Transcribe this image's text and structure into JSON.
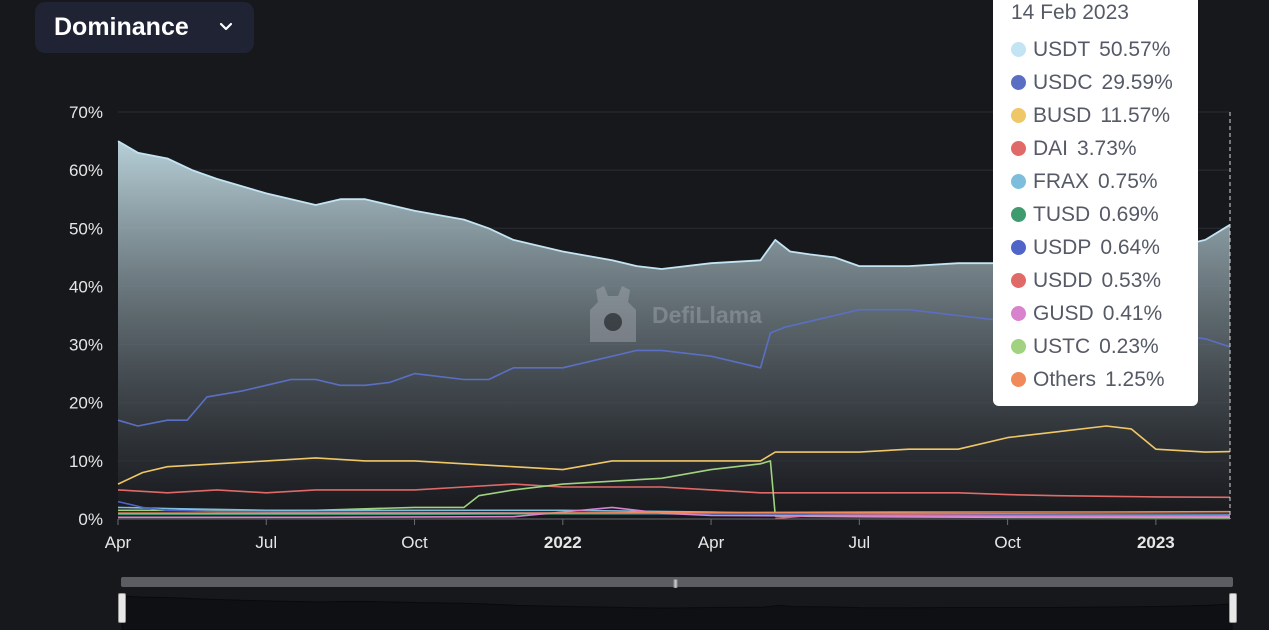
{
  "dropdown": {
    "label": "Dominance"
  },
  "watermark": {
    "text": "DefiLlama"
  },
  "tooltip": {
    "date": "14 Feb 2023",
    "items": [
      {
        "name": "USDT",
        "value": "50.57%",
        "color": "#c3e4f2"
      },
      {
        "name": "USDC",
        "value": "29.59%",
        "color": "#5a6fc4"
      },
      {
        "name": "BUSD",
        "value": "11.57%",
        "color": "#f0c766"
      },
      {
        "name": "DAI",
        "value": "3.73%",
        "color": "#e06a68"
      },
      {
        "name": "FRAX",
        "value": "0.75%",
        "color": "#7cbedb"
      },
      {
        "name": "TUSD",
        "value": "0.69%",
        "color": "#3f9a6e"
      },
      {
        "name": "USDP",
        "value": "0.64%",
        "color": "#4f66c8"
      },
      {
        "name": "USDD",
        "value": "0.53%",
        "color": "#e06a68"
      },
      {
        "name": "GUSD",
        "value": "0.41%",
        "color": "#d982cd"
      },
      {
        "name": "USTC",
        "value": "0.23%",
        "color": "#a0d27f"
      },
      {
        "name": "Others",
        "value": "1.25%",
        "color": "#f08a5a"
      }
    ]
  },
  "chart_data": {
    "type": "line",
    "title": "",
    "ylabel": "",
    "xlabel": "",
    "ylim": [
      0,
      70
    ],
    "y_ticks": [
      "0%",
      "10%",
      "20%",
      "30%",
      "40%",
      "50%",
      "60%",
      "70%"
    ],
    "x_ticks": [
      {
        "label": "Apr",
        "t": 0,
        "bold": false
      },
      {
        "label": "Jul",
        "t": 3,
        "bold": false
      },
      {
        "label": "Oct",
        "t": 6,
        "bold": false
      },
      {
        "label": "2022",
        "t": 9,
        "bold": true
      },
      {
        "label": "Apr",
        "t": 12,
        "bold": false
      },
      {
        "label": "Jul",
        "t": 15,
        "bold": false
      },
      {
        "label": "Oct",
        "t": 18,
        "bold": false
      },
      {
        "label": "2023",
        "t": 21,
        "bold": true
      }
    ],
    "x_end": 22.5,
    "series": [
      {
        "name": "USDT",
        "color": "#c3e4f2",
        "area": true,
        "points": [
          [
            0,
            65
          ],
          [
            0.4,
            63
          ],
          [
            1,
            62
          ],
          [
            1.5,
            60
          ],
          [
            2,
            58.5
          ],
          [
            3,
            56
          ],
          [
            4,
            54
          ],
          [
            4.5,
            55
          ],
          [
            5,
            55
          ],
          [
            6,
            53
          ],
          [
            7,
            51.5
          ],
          [
            7.5,
            50
          ],
          [
            8,
            48
          ],
          [
            9,
            46
          ],
          [
            10,
            44.5
          ],
          [
            10.5,
            43.5
          ],
          [
            11,
            43
          ],
          [
            12,
            44
          ],
          [
            13,
            44.5
          ],
          [
            13.3,
            48
          ],
          [
            13.6,
            46
          ],
          [
            14,
            45.5
          ],
          [
            14.5,
            45
          ],
          [
            15,
            43.5
          ],
          [
            16,
            43.5
          ],
          [
            17,
            44
          ],
          [
            18,
            44
          ],
          [
            19,
            44
          ],
          [
            20,
            45
          ],
          [
            21,
            46
          ],
          [
            22,
            48
          ],
          [
            22.5,
            50.6
          ]
        ]
      },
      {
        "name": "USDC",
        "color": "#5a6fc4",
        "points": [
          [
            0,
            17
          ],
          [
            0.4,
            16
          ],
          [
            1,
            17
          ],
          [
            1.4,
            17
          ],
          [
            1.8,
            21
          ],
          [
            2.5,
            22
          ],
          [
            3,
            23
          ],
          [
            3.5,
            24
          ],
          [
            4,
            24
          ],
          [
            4.5,
            23
          ],
          [
            5,
            23
          ],
          [
            5.5,
            23.5
          ],
          [
            6,
            25
          ],
          [
            7,
            24
          ],
          [
            7.5,
            24
          ],
          [
            8,
            26
          ],
          [
            9,
            26
          ],
          [
            10,
            28
          ],
          [
            10.5,
            29
          ],
          [
            11,
            29
          ],
          [
            12,
            28
          ],
          [
            13,
            26
          ],
          [
            13.2,
            32
          ],
          [
            13.5,
            33
          ],
          [
            14,
            34
          ],
          [
            14.5,
            35
          ],
          [
            15,
            36
          ],
          [
            16,
            36
          ],
          [
            17,
            35
          ],
          [
            18,
            34
          ],
          [
            19,
            34
          ],
          [
            20,
            33
          ],
          [
            21,
            32
          ],
          [
            22,
            31
          ],
          [
            22.5,
            29.6
          ]
        ]
      },
      {
        "name": "BUSD",
        "color": "#f0c766",
        "points": [
          [
            0,
            6
          ],
          [
            0.5,
            8
          ],
          [
            1,
            9
          ],
          [
            2,
            9.5
          ],
          [
            3,
            10
          ],
          [
            4,
            10.5
          ],
          [
            5,
            10
          ],
          [
            6,
            10
          ],
          [
            7,
            9.5
          ],
          [
            8,
            9
          ],
          [
            9,
            8.5
          ],
          [
            10,
            10
          ],
          [
            11,
            10
          ],
          [
            12,
            10
          ],
          [
            13,
            10
          ],
          [
            13.3,
            11.5
          ],
          [
            14,
            11.5
          ],
          [
            15,
            11.5
          ],
          [
            16,
            12
          ],
          [
            17,
            12
          ],
          [
            18,
            14
          ],
          [
            19,
            15
          ],
          [
            20,
            16
          ],
          [
            20.5,
            15.5
          ],
          [
            21,
            12
          ],
          [
            22,
            11.5
          ],
          [
            22.5,
            11.6
          ]
        ]
      },
      {
        "name": "DAI",
        "color": "#e06a68",
        "points": [
          [
            0,
            5
          ],
          [
            1,
            4.5
          ],
          [
            2,
            5
          ],
          [
            3,
            4.5
          ],
          [
            4,
            5
          ],
          [
            5,
            5
          ],
          [
            6,
            5
          ],
          [
            7,
            5.5
          ],
          [
            8,
            6
          ],
          [
            9,
            5.5
          ],
          [
            10,
            5.5
          ],
          [
            11,
            5.5
          ],
          [
            12,
            5
          ],
          [
            13,
            4.5
          ],
          [
            14,
            4.5
          ],
          [
            15,
            4.5
          ],
          [
            16,
            4.5
          ],
          [
            17,
            4.5
          ],
          [
            18,
            4.2
          ],
          [
            19,
            4
          ],
          [
            20,
            3.9
          ],
          [
            21,
            3.8
          ],
          [
            22,
            3.75
          ],
          [
            22.5,
            3.73
          ]
        ]
      },
      {
        "name": "USTC",
        "color": "#a0d27f",
        "points": [
          [
            0,
            1.5
          ],
          [
            2,
            1.5
          ],
          [
            4,
            1.5
          ],
          [
            6,
            2
          ],
          [
            7,
            2
          ],
          [
            7.3,
            4
          ],
          [
            8,
            5
          ],
          [
            9,
            6
          ],
          [
            10,
            6.5
          ],
          [
            11,
            7
          ],
          [
            12,
            8.5
          ],
          [
            13,
            9.5
          ],
          [
            13.2,
            10
          ],
          [
            13.3,
            0.5
          ],
          [
            15,
            0.4
          ],
          [
            18,
            0.3
          ],
          [
            20,
            0.25
          ],
          [
            22.5,
            0.23
          ]
        ]
      },
      {
        "name": "FRAX",
        "color": "#7cbedb",
        "points": [
          [
            0,
            2
          ],
          [
            1,
            1.8
          ],
          [
            3,
            1.5
          ],
          [
            6,
            1.5
          ],
          [
            9,
            1.5
          ],
          [
            12,
            1.2
          ],
          [
            13,
            1
          ],
          [
            15,
            1
          ],
          [
            18,
            0.9
          ],
          [
            22.5,
            0.75
          ]
        ]
      },
      {
        "name": "TUSD",
        "color": "#3f9a6e",
        "points": [
          [
            0,
            0.8
          ],
          [
            3,
            0.8
          ],
          [
            6,
            0.8
          ],
          [
            9,
            0.9
          ],
          [
            12,
            0.9
          ],
          [
            15,
            0.8
          ],
          [
            18,
            0.8
          ],
          [
            22.5,
            0.69
          ]
        ]
      },
      {
        "name": "USDP",
        "color": "#4f66c8",
        "points": [
          [
            0,
            3
          ],
          [
            0.5,
            2
          ],
          [
            1,
            1.5
          ],
          [
            2,
            1.3
          ],
          [
            4,
            1.2
          ],
          [
            6,
            1.1
          ],
          [
            9,
            1
          ],
          [
            12,
            0.9
          ],
          [
            15,
            0.8
          ],
          [
            18,
            0.7
          ],
          [
            22.5,
            0.64
          ]
        ]
      },
      {
        "name": "USDD",
        "color": "#e06a68",
        "points": [
          [
            13.3,
            0.1
          ],
          [
            14,
            0.6
          ],
          [
            16,
            0.7
          ],
          [
            18,
            0.6
          ],
          [
            20,
            0.6
          ],
          [
            22.5,
            0.53
          ]
        ]
      },
      {
        "name": "GUSD",
        "color": "#d982cd",
        "points": [
          [
            0,
            0.3
          ],
          [
            4,
            0.3
          ],
          [
            8,
            0.4
          ],
          [
            9,
            1.2
          ],
          [
            10,
            2
          ],
          [
            11,
            1
          ],
          [
            12,
            0.6
          ],
          [
            15,
            0.5
          ],
          [
            18,
            0.4
          ],
          [
            22.5,
            0.41
          ]
        ]
      },
      {
        "name": "Others",
        "color": "#f08a5a",
        "points": [
          [
            0,
            1
          ],
          [
            4,
            1
          ],
          [
            8,
            1
          ],
          [
            12,
            1.1
          ],
          [
            16,
            1.2
          ],
          [
            20,
            1.2
          ],
          [
            22.5,
            1.25
          ]
        ]
      }
    ]
  }
}
